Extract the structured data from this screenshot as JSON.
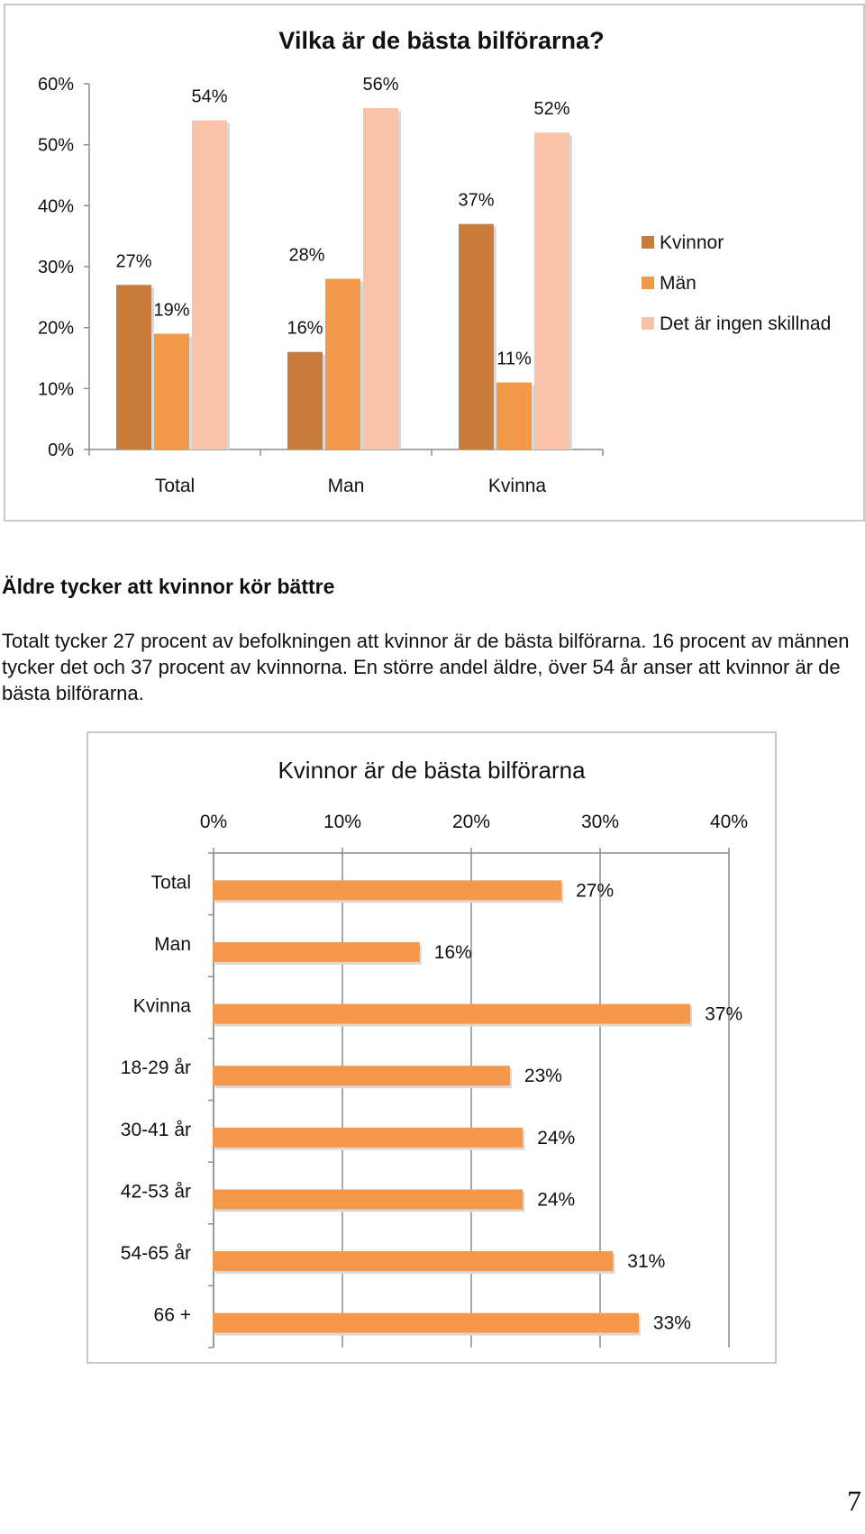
{
  "article": {
    "heading": "Äldre tycker att kvinnor kör bättre",
    "body": "Totalt tycker 27 procent av befolkningen att kvinnor är de bästa bilförarna. 16 procent av männen tycker det och 37 procent av kvinnorna.  En större andel äldre, över 54 år anser att kvinnor är de bästa bilförarna."
  },
  "page_number": "7",
  "colors": {
    "kvinnor": "#c97c3c",
    "man": "#f29a4a",
    "ingen_skillnad": "#f8c3a8",
    "bar2": "#f5984a",
    "axis": "#8c8c8c",
    "frame": "#c8c8c8"
  },
  "chart_data": [
    {
      "type": "bar",
      "title": "Vilka är de bästa bilförarna?",
      "categories": [
        "Total",
        "Man",
        "Kvinna"
      ],
      "series": [
        {
          "name": "Kvinnor",
          "values": [
            27,
            16,
            37
          ]
        },
        {
          "name": "Män",
          "values": [
            19,
            28,
            11
          ]
        },
        {
          "name": "Det är ingen skillnad",
          "values": [
            54,
            56,
            52
          ]
        }
      ],
      "value_labels": [
        [
          "27%",
          "16%",
          "37%"
        ],
        [
          "19%",
          "28%",
          "11%"
        ],
        [
          "54%",
          "56%",
          "52%"
        ]
      ],
      "yticks": [
        "0%",
        "10%",
        "20%",
        "30%",
        "40%",
        "50%",
        "60%"
      ],
      "ylim": [
        0,
        60
      ],
      "legend": "right",
      "grid": false
    },
    {
      "type": "bar",
      "orientation": "horizontal",
      "title": "Kvinnor är de bästa bilförarna",
      "categories": [
        "Total",
        "Man",
        "Kvinna",
        "18-29 år",
        "30-41 år",
        "42-53 år",
        "54-65 år",
        "66 +"
      ],
      "values": [
        27,
        16,
        37,
        23,
        24,
        24,
        31,
        33
      ],
      "value_labels": [
        "27%",
        "16%",
        "37%",
        "23%",
        "24%",
        "24%",
        "31%",
        "33%"
      ],
      "xticks": [
        "0%",
        "10%",
        "20%",
        "30%",
        "40%"
      ],
      "xlim": [
        0,
        40
      ],
      "xaxis_position": "top",
      "grid": true
    }
  ]
}
